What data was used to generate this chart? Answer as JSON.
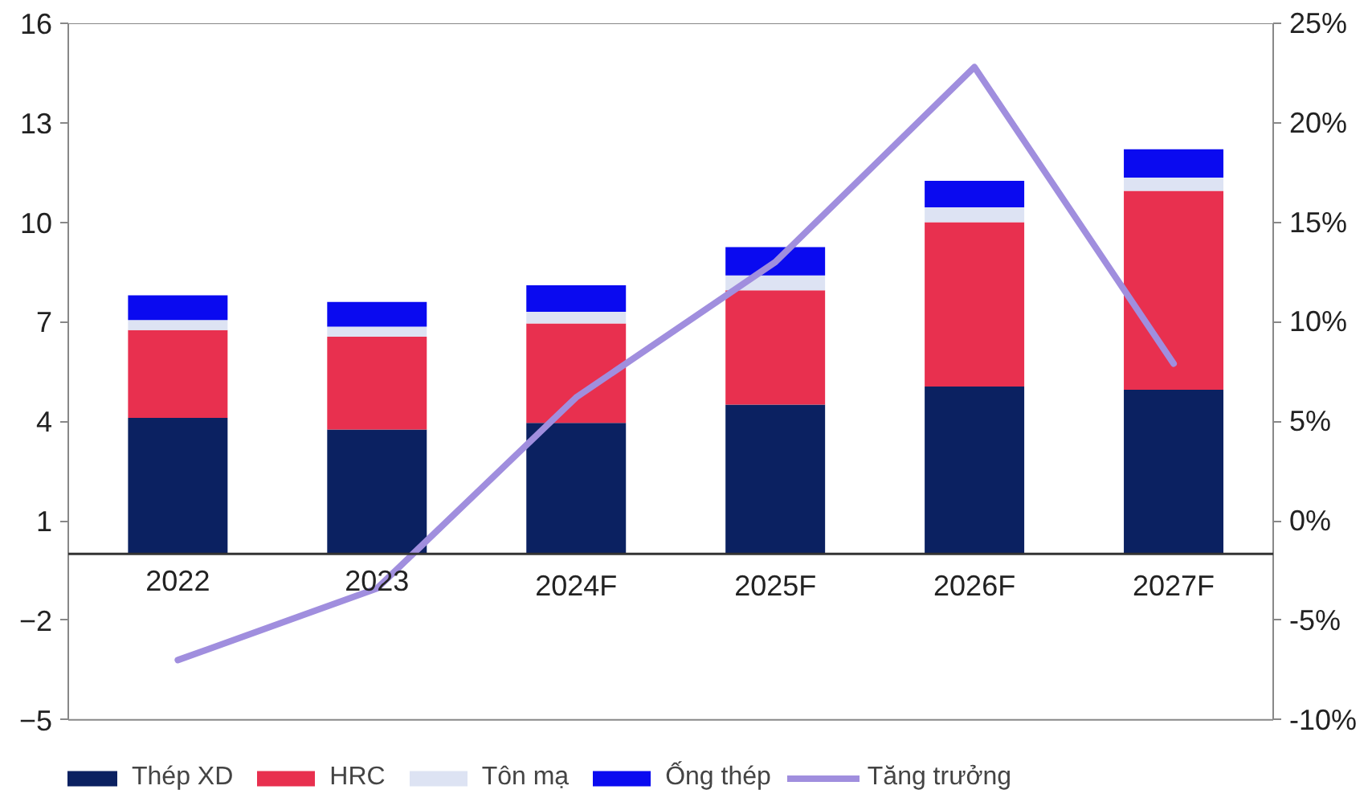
{
  "chart_data": {
    "type": "bar",
    "stacked": true,
    "categories": [
      "2022",
      "2023",
      "2024F",
      "2025F",
      "2026F",
      "2027F"
    ],
    "series": [
      {
        "name": "Thép XD",
        "color": "#0b2161",
        "values": [
          4.1,
          3.75,
          3.95,
          4.5,
          5.05,
          4.95
        ]
      },
      {
        "name": "HRC",
        "color": "#e8304f",
        "values": [
          2.65,
          2.8,
          3.0,
          3.45,
          4.95,
          6.0
        ]
      },
      {
        "name": "Tôn mạ",
        "color": "#dde3f3",
        "values": [
          0.3,
          0.3,
          0.35,
          0.45,
          0.45,
          0.4
        ]
      },
      {
        "name": "Ống thép",
        "color": "#0a0af0",
        "values": [
          0.75,
          0.75,
          0.8,
          0.85,
          0.8,
          0.85
        ]
      },
      {
        "name": "Tăng trưởng",
        "type": "line",
        "axis": "y2",
        "color": "#a08ede",
        "values": [
          -7.0,
          -3.4,
          6.2,
          13.0,
          22.8,
          7.9
        ]
      }
    ],
    "ylim": [
      -5,
      16
    ],
    "yticks": [
      -5,
      -2,
      1,
      4,
      7,
      10,
      13,
      16
    ],
    "y2lim": [
      -10,
      25
    ],
    "y2ticks": [
      {
        "value": -10,
        "label": "-10%"
      },
      {
        "value": -5,
        "label": "-5%"
      },
      {
        "value": 0,
        "label": "0%"
      },
      {
        "value": 5,
        "label": "5%"
      },
      {
        "value": 10,
        "label": "10%"
      },
      {
        "value": 15,
        "label": "15%"
      },
      {
        "value": 20,
        "label": "20%"
      },
      {
        "value": 25,
        "label": "25%"
      }
    ],
    "grid": false,
    "legend": "bottom",
    "line_style": "solid",
    "marker": "none"
  }
}
